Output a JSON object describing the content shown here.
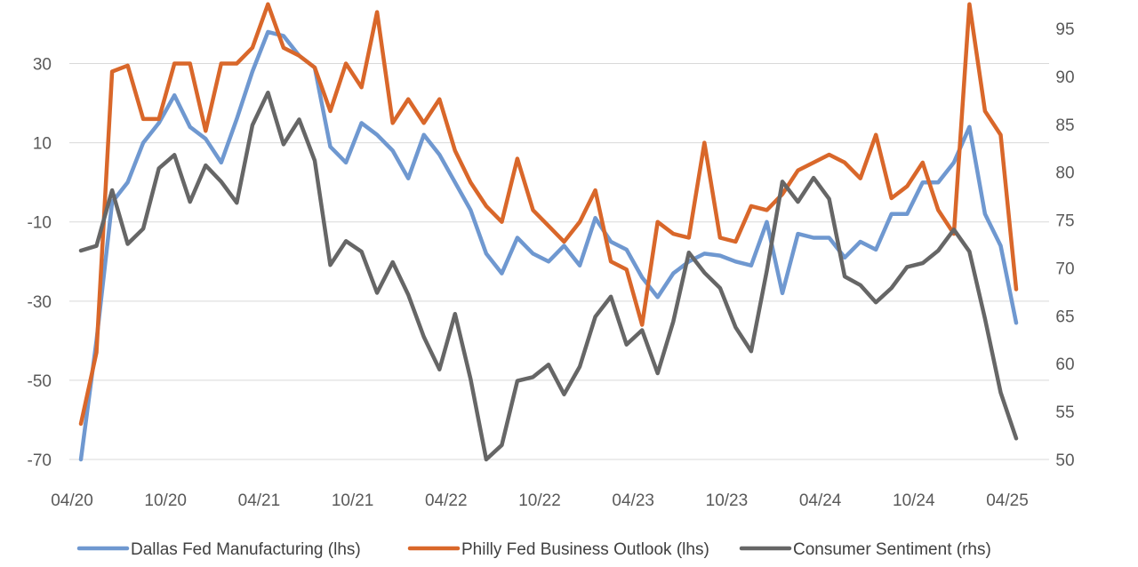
{
  "chart_data": {
    "type": "line",
    "x_ticks": [
      "04/20",
      "10/20",
      "04/21",
      "10/21",
      "04/22",
      "10/22",
      "04/23",
      "10/23",
      "04/24",
      "10/24",
      "04/25"
    ],
    "y_left_ticks": [
      "30",
      "10",
      "-10",
      "-30",
      "-50",
      "-70"
    ],
    "y_right_ticks": [
      "95",
      "90",
      "85",
      "80",
      "75",
      "70",
      "65",
      "60",
      "55",
      "50"
    ],
    "ylim_left": [
      -70,
      40
    ],
    "ylim_right": [
      50,
      95
    ],
    "grid": true,
    "legend_position": "bottom",
    "x": [
      "2020-04",
      "2020-05",
      "2020-06",
      "2020-07",
      "2020-08",
      "2020-09",
      "2020-10",
      "2020-11",
      "2020-12",
      "2021-01",
      "2021-02",
      "2021-03",
      "2021-04",
      "2021-05",
      "2021-06",
      "2021-07",
      "2021-08",
      "2021-09",
      "2021-10",
      "2021-11",
      "2021-12",
      "2022-01",
      "2022-02",
      "2022-03",
      "2022-04",
      "2022-05",
      "2022-06",
      "2022-07",
      "2022-08",
      "2022-09",
      "2022-10",
      "2022-11",
      "2022-12",
      "2023-01",
      "2023-02",
      "2023-03",
      "2023-04",
      "2023-05",
      "2023-06",
      "2023-07",
      "2023-08",
      "2023-09",
      "2023-10",
      "2023-11",
      "2023-12",
      "2024-01",
      "2024-02",
      "2024-03",
      "2024-04",
      "2024-05",
      "2024-06",
      "2024-07",
      "2024-08",
      "2024-09",
      "2024-10",
      "2024-11",
      "2024-12",
      "2025-01",
      "2025-02",
      "2025-03",
      "2025-04"
    ],
    "series": [
      {
        "name": "Dallas Fed Manufacturing (lhs)",
        "axis": "left",
        "color": "#6f98d0",
        "values": [
          -70,
          -40,
          -5,
          0,
          10,
          15,
          22,
          14,
          11,
          5,
          16,
          28,
          38,
          37,
          32,
          29,
          9,
          5,
          15,
          12,
          8,
          1,
          12,
          7,
          0,
          -7,
          -18,
          -23,
          -14,
          -18,
          -20,
          -16,
          -21,
          -9,
          -15,
          -17,
          -24,
          -29,
          -23,
          -20,
          -18,
          -18.5,
          -20,
          -21,
          -10,
          -28,
          -13,
          -14,
          -14,
          -19,
          -15,
          -17,
          -8,
          -8,
          0,
          0,
          5,
          14,
          -8,
          -16,
          -35.5
        ]
      },
      {
        "name": "Philly Fed Business Outlook (lhs)",
        "axis": "left",
        "color": "#d9672a",
        "values": [
          -61,
          -43,
          28,
          29.5,
          16,
          16,
          30,
          30,
          13,
          30,
          30,
          34,
          45,
          34,
          32,
          29,
          18,
          30,
          24,
          43,
          15,
          21,
          15,
          21,
          8,
          0,
          -6,
          -10,
          6,
          -7,
          -11,
          -15,
          -10,
          -2,
          -20,
          -22,
          -36,
          -10,
          -13,
          -14,
          10,
          -14,
          -15,
          -6,
          -7,
          -3,
          3,
          5,
          7,
          5,
          1,
          12,
          -4,
          -1,
          5,
          -7,
          -13,
          45,
          18,
          12,
          -27
        ]
      },
      {
        "name": "Consumer Sentiment (rhs)",
        "axis": "right",
        "color": "#666666",
        "values": [
          71.8,
          72.3,
          78.1,
          72.5,
          74.1,
          80.4,
          81.8,
          76.9,
          80.7,
          79.0,
          76.8,
          84.9,
          88.3,
          82.9,
          85.5,
          81.2,
          70.3,
          72.8,
          71.7,
          67.4,
          70.6,
          67.2,
          62.8,
          59.4,
          65.2,
          58.4,
          50.0,
          51.5,
          58.2,
          58.6,
          59.9,
          56.8,
          59.7,
          64.9,
          67.0,
          62.0,
          63.5,
          59.0,
          64.4,
          71.6,
          69.5,
          67.9,
          63.8,
          61.3,
          69.7,
          79.0,
          76.9,
          79.4,
          77.2,
          69.1,
          68.2,
          66.4,
          67.9,
          70.1,
          70.5,
          71.8,
          74.0,
          71.7,
          64.7,
          57.0,
          52.2
        ]
      }
    ]
  }
}
